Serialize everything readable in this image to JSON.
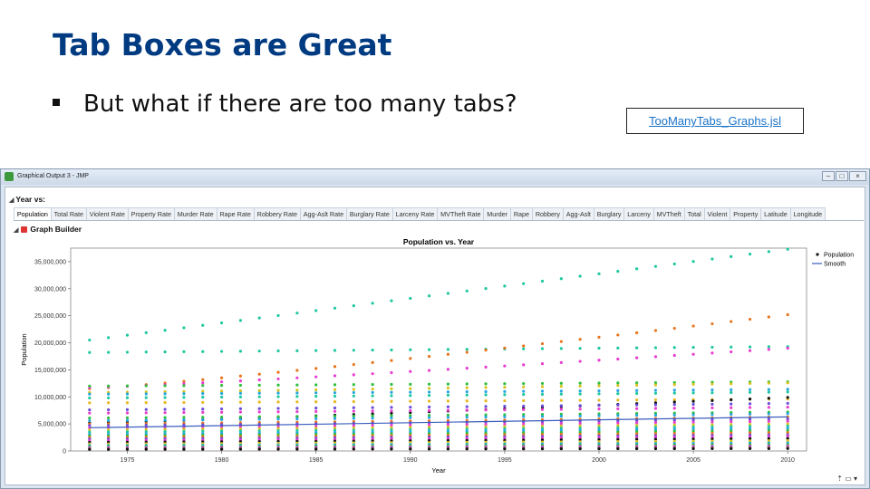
{
  "slide": {
    "title": "Tab Boxes are Great",
    "bullet": "But what if there are too many tabs?",
    "link": "TooManyTabs_Graphs.jsl"
  },
  "window": {
    "title": "Graphical Output 3 - JMP",
    "controls": [
      "–",
      "□",
      "×"
    ]
  },
  "outline": {
    "title": "Year vs:"
  },
  "tabs": [
    "Population",
    "Total Rate",
    "Violent Rate",
    "Property Rate",
    "Murder Rate",
    "Rape Rate",
    "Robbery Rate",
    "Agg-Aslt Rate",
    "Burglary Rate",
    "Larceny Rate",
    "MVTheft Rate",
    "Murder",
    "Rape",
    "Robbery",
    "Agg-Aslt",
    "Burglary",
    "Larceny",
    "MVTheft",
    "Total",
    "Violent",
    "Property",
    "Latitude",
    "Longitude"
  ],
  "active_tab": "Population",
  "graph_builder": {
    "title": "Graph Builder"
  },
  "statusbar": {
    "icons": [
      "arrow-up-icon",
      "window-icon",
      "dropdown-icon"
    ]
  },
  "chart_data": {
    "type": "scatter",
    "title": "Population vs. Year",
    "xlabel": "Year",
    "ylabel": "Population",
    "xlim": [
      1972,
      2011
    ],
    "ylim": [
      0,
      37500000
    ],
    "x_ticks": [
      1975,
      1980,
      1985,
      1990,
      1995,
      2000,
      2005,
      2010
    ],
    "y_ticks": [
      0,
      5000000,
      10000000,
      15000000,
      20000000,
      25000000,
      30000000,
      35000000
    ],
    "y_tick_labels": [
      "0",
      "5,000,000",
      "10,000,000",
      "15,000,000",
      "20,000,000",
      "25,000,000",
      "30,000,000",
      "35,000,000"
    ],
    "legend": [
      {
        "name": "Population",
        "marker": "point"
      },
      {
        "name": "Smooth",
        "marker": "line"
      }
    ],
    "legend_position": "right",
    "smooth": {
      "x": [
        1973,
        2010
      ],
      "y": [
        4300000,
        6300000
      ],
      "color": "#3a5cbf"
    },
    "series": [
      {
        "color": "#1ec7a0",
        "start": 20500000,
        "end": 37300000
      },
      {
        "color": "#1ec7a0",
        "start": 18200000,
        "end": 19300000
      },
      {
        "color": "#e8731c",
        "start": 11500000,
        "end": 25200000
      },
      {
        "color": "#e83cd0",
        "start": 11700000,
        "end": 19000000
      },
      {
        "color": "#2fbf3f",
        "start": 12000000,
        "end": 12800000
      },
      {
        "color": "#d4c21e",
        "start": 10800000,
        "end": 12600000
      },
      {
        "color": "#27a6e0",
        "start": 10500000,
        "end": 11400000
      },
      {
        "color": "#1ec7a0",
        "start": 9800000,
        "end": 10900000
      },
      {
        "color": "#e8b81c",
        "start": 8900000,
        "end": 9600000
      },
      {
        "color": "#111111",
        "start": 5200000,
        "end": 9900000
      },
      {
        "color": "#6b4cd8",
        "start": 7600000,
        "end": 8800000
      },
      {
        "color": "#e83cd0",
        "start": 7000000,
        "end": 8100000
      },
      {
        "color": "#2fbf3f",
        "start": 6100000,
        "end": 7200000
      },
      {
        "color": "#27a6e0",
        "start": 5600000,
        "end": 6900000
      },
      {
        "color": "#e8731c",
        "start": 5000000,
        "end": 6300000
      },
      {
        "color": "#6b4cd8",
        "start": 4700000,
        "end": 5900000
      },
      {
        "color": "#e83cd0",
        "start": 4300000,
        "end": 5500000
      },
      {
        "color": "#d4c21e",
        "start": 3900000,
        "end": 5000000
      },
      {
        "color": "#1ec7a0",
        "start": 3500000,
        "end": 4600000
      },
      {
        "color": "#27a6e0",
        "start": 3100000,
        "end": 4200000
      },
      {
        "color": "#2fbf3f",
        "start": 2800000,
        "end": 3800000
      },
      {
        "color": "#e8731c",
        "start": 2500000,
        "end": 3400000
      },
      {
        "color": "#6b4cd8",
        "start": 2200000,
        "end": 3000000
      },
      {
        "color": "#e83cd0",
        "start": 1900000,
        "end": 2700000
      },
      {
        "color": "#111111",
        "start": 1600000,
        "end": 2300000
      },
      {
        "color": "#d4c21e",
        "start": 1300000,
        "end": 1900000
      },
      {
        "color": "#27a6e0",
        "start": 1000000,
        "end": 1500000
      },
      {
        "color": "#2fbf3f",
        "start": 800000,
        "end": 1200000
      },
      {
        "color": "#e83cd0",
        "start": 600000,
        "end": 900000
      },
      {
        "color": "#6b4cd8",
        "start": 450000,
        "end": 700000
      },
      {
        "color": "#e8731c",
        "start": 350000,
        "end": 550000
      },
      {
        "color": "#111111",
        "start": 300000,
        "end": 450000
      }
    ]
  }
}
